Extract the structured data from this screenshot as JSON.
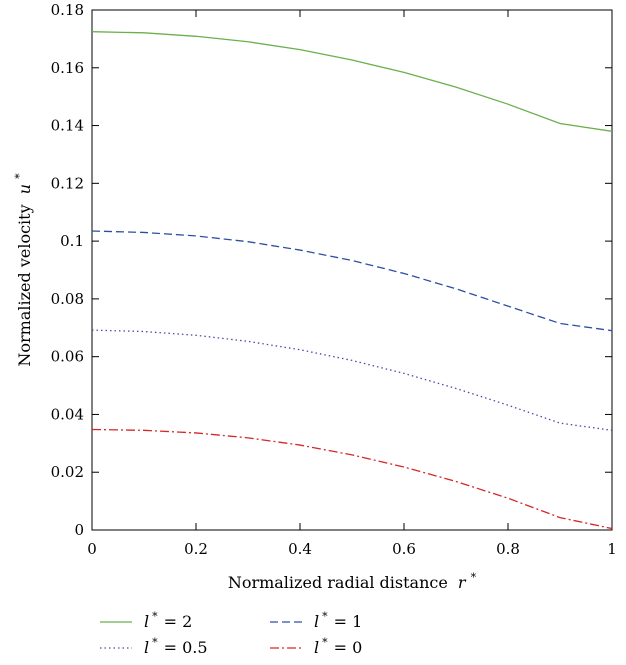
{
  "chart_data": {
    "type": "line",
    "xlabel": "Normalized radial distance",
    "xlabel_var": "r",
    "ylabel": "Normalized velocity",
    "ylabel_var": "u",
    "star": "*",
    "xlim": [
      0,
      1
    ],
    "ylim": [
      0,
      0.18
    ],
    "xticks": [
      0,
      0.2,
      0.4,
      0.6,
      0.8,
      1
    ],
    "xtick_labels": [
      "0",
      "0.2",
      "0.4",
      "0.6",
      "0.8",
      "1"
    ],
    "yticks": [
      0,
      0.02,
      0.04,
      0.06,
      0.08,
      0.1,
      0.12,
      0.14,
      0.16,
      0.18
    ],
    "ytick_labels": [
      "0",
      "0.02",
      "0.04",
      "0.06",
      "0.08",
      "0.1",
      "0.12",
      "0.14",
      "0.16",
      "0.18"
    ],
    "grid": false,
    "legend_position": "bottom",
    "x": [
      0,
      0.1,
      0.2,
      0.3,
      0.4,
      0.5,
      0.6,
      0.7,
      0.8,
      0.9,
      1.0
    ],
    "series": [
      {
        "name": "l* = 2",
        "var": "l",
        "value_label": "= 2",
        "color": "#6ab04c",
        "dash": "solid",
        "values": [
          0.1725,
          0.1721,
          0.1709,
          0.169,
          0.1663,
          0.1627,
          0.1584,
          0.1533,
          0.1474,
          0.1407,
          0.138
        ]
      },
      {
        "name": "l* = 1",
        "var": "l",
        "value_label": "= 1",
        "color": "#2d4fa0",
        "dash": "dashed",
        "values": [
          0.1035,
          0.103,
          0.1018,
          0.0998,
          0.0969,
          0.0933,
          0.0888,
          0.0835,
          0.0775,
          0.0715,
          0.069
        ]
      },
      {
        "name": "l* = 0.5",
        "var": "l",
        "value_label": "= 0.5",
        "color": "#4a4aa8",
        "dash": "dotted",
        "values": [
          0.0692,
          0.0687,
          0.0674,
          0.0653,
          0.0624,
          0.0587,
          0.0542,
          0.049,
          0.0432,
          0.037,
          0.0345
        ]
      },
      {
        "name": "l* = 0",
        "var": "l",
        "value_label": "= 0",
        "color": "#d62728",
        "dash": "dashdot",
        "values": [
          0.0348,
          0.0345,
          0.0336,
          0.0319,
          0.0294,
          0.026,
          0.0218,
          0.0168,
          0.011,
          0.0043,
          0.0005
        ]
      }
    ]
  }
}
